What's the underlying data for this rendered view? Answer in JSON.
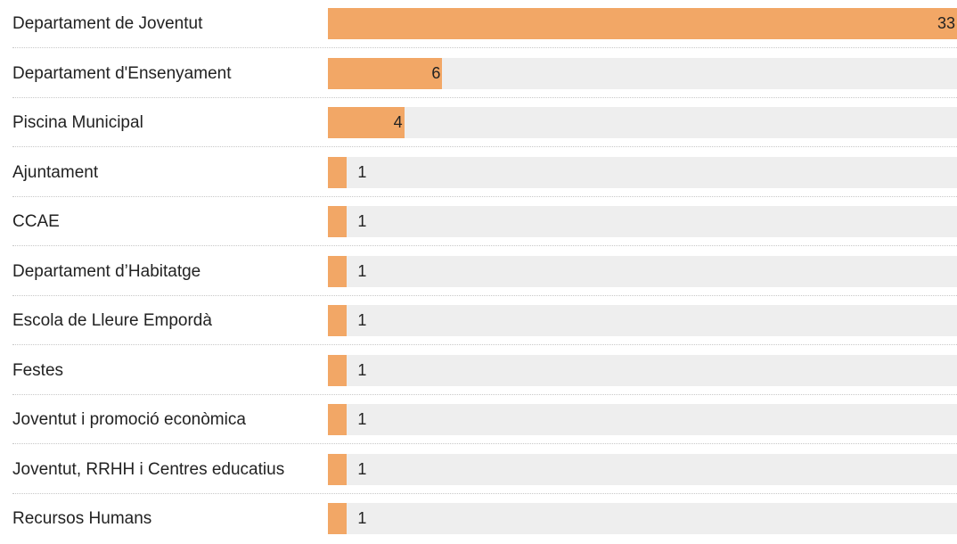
{
  "chart_data": {
    "type": "bar",
    "orientation": "horizontal",
    "categories": [
      "Departament de Joventut",
      "Departament d'Ensenyament",
      "Piscina Municipal",
      "Ajuntament",
      "CCAE",
      "Departament d’Habitatge",
      "Escola de Lleure Empordà",
      "Festes",
      "Joventut i promoció econòmica",
      "Joventut, RRHH i Centres educatius",
      "Recursos Humans"
    ],
    "values": [
      33,
      6,
      4,
      1,
      1,
      1,
      1,
      1,
      1,
      1,
      1
    ],
    "xlim": [
      0,
      33
    ],
    "grid": false,
    "legend": "none",
    "colors": {
      "bar": "#f2a766",
      "track": "#eeeeee",
      "separator": "#c8c8c8"
    }
  }
}
